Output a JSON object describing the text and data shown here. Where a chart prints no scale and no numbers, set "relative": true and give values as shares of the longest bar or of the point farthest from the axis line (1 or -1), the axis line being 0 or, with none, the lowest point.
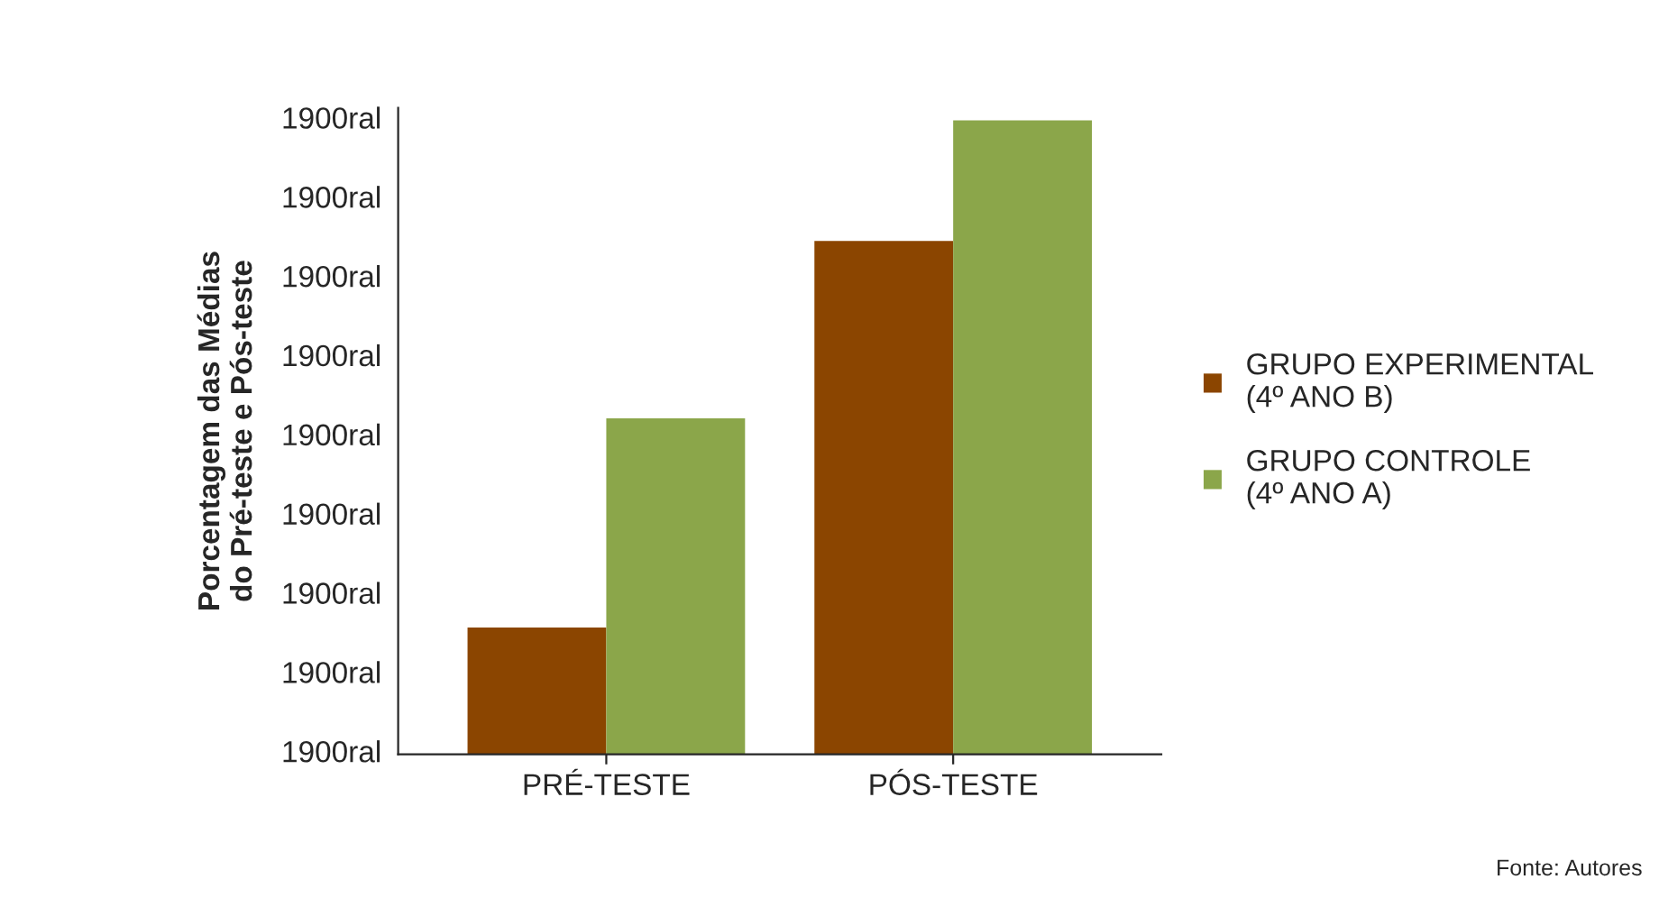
{
  "chart_data": {
    "type": "bar",
    "relative": true,
    "ylabel": "Porcentagem das Médias\ndo Pré-teste e Pós-teste",
    "categories": [
      "PRÉ-TESTE",
      "PÓS-TESTE"
    ],
    "series": [
      {
        "name": "GRUPO EXPERIMENTAL\n(4º ANO B)",
        "color": "#8b4500",
        "values": [
          0.2,
          0.81
        ]
      },
      {
        "name": "GRUPO CONTROLE\n(4º ANO A)",
        "color": "#8ba64a",
        "values": [
          0.53,
          1
        ]
      }
    ],
    "grid": false,
    "legend": "right",
    "annotations": [
      "1900ral",
      "1900ral",
      "1900ral",
      "1900ral",
      "1900ral",
      "1900ral",
      "1900ral",
      "1900ral",
      "1900ral",
      "Fonte: Autores"
    ]
  }
}
